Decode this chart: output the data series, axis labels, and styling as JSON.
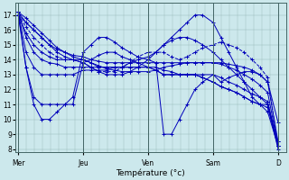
{
  "background_color": "#cce8ec",
  "plot_bg_color": "#cce8ec",
  "grid_color": "#99bbbb",
  "line_color": "#0000bb",
  "xlabel": "Température (°c)",
  "ylim": [
    7.8,
    17.8
  ],
  "yticks": [
    8,
    9,
    10,
    11,
    12,
    13,
    14,
    15,
    16,
    17
  ],
  "day_positions": [
    0.0,
    0.25,
    0.5,
    0.75,
    1.0
  ],
  "day_labels": [
    "Mer",
    "Jeu",
    "Ven",
    "Sam",
    "D"
  ],
  "series": [
    {
      "x": [
        0.0,
        0.03,
        0.06,
        0.09,
        0.12,
        0.15,
        0.18,
        0.21,
        0.25,
        0.28,
        0.31,
        0.34,
        0.37,
        0.4,
        0.43,
        0.46,
        0.5,
        0.53,
        0.56,
        0.59,
        0.62,
        0.65,
        0.68,
        0.71,
        0.75,
        0.78,
        0.81,
        0.84,
        0.87,
        0.9,
        0.93,
        0.96,
        1.0
      ],
      "y": [
        17.2,
        16.8,
        16.3,
        15.8,
        15.3,
        14.8,
        14.5,
        14.2,
        14.0,
        13.8,
        13.6,
        13.4,
        13.3,
        13.2,
        13.2,
        13.2,
        13.2,
        13.3,
        13.5,
        13.6,
        13.7,
        13.8,
        13.8,
        13.8,
        13.8,
        13.8,
        13.7,
        13.6,
        13.5,
        13.3,
        13.0,
        12.5,
        9.8
      ],
      "linestyle": "solid"
    },
    {
      "x": [
        0.0,
        0.03,
        0.06,
        0.09,
        0.12,
        0.15,
        0.18,
        0.21,
        0.25,
        0.28,
        0.31,
        0.34,
        0.37,
        0.4,
        0.43,
        0.46,
        0.5,
        0.53,
        0.56,
        0.59,
        0.62,
        0.65,
        0.68,
        0.71,
        0.75,
        0.78,
        0.81,
        0.84,
        0.87,
        0.9,
        0.93,
        0.96,
        1.0
      ],
      "y": [
        17.2,
        16.5,
        16.0,
        15.5,
        15.0,
        14.7,
        14.5,
        14.3,
        14.2,
        14.0,
        13.9,
        13.8,
        13.8,
        13.8,
        13.8,
        13.8,
        13.8,
        13.8,
        13.8,
        13.8,
        13.8,
        13.8,
        13.8,
        13.8,
        13.8,
        13.7,
        13.5,
        13.3,
        13.0,
        12.7,
        12.3,
        11.8,
        8.2
      ],
      "linestyle": "solid"
    },
    {
      "x": [
        0.0,
        0.03,
        0.06,
        0.09,
        0.12,
        0.15,
        0.18,
        0.21,
        0.25,
        0.28,
        0.31,
        0.34,
        0.37,
        0.4,
        0.43,
        0.46,
        0.5,
        0.53,
        0.56,
        0.59,
        0.62,
        0.65,
        0.68,
        0.71,
        0.75,
        0.78,
        0.81,
        0.84,
        0.87,
        0.9,
        0.93,
        0.96,
        1.0
      ],
      "y": [
        17.2,
        15.5,
        14.5,
        14.0,
        13.8,
        13.7,
        13.5,
        13.5,
        13.5,
        13.5,
        13.5,
        13.5,
        13.5,
        13.5,
        13.5,
        13.5,
        13.5,
        13.5,
        13.3,
        13.2,
        13.0,
        13.0,
        13.0,
        13.0,
        13.0,
        12.8,
        12.5,
        12.3,
        12.0,
        11.7,
        11.5,
        11.2,
        8.2
      ],
      "linestyle": "solid"
    },
    {
      "x": [
        0.0,
        0.03,
        0.06,
        0.09,
        0.12,
        0.15,
        0.18,
        0.21,
        0.25,
        0.28,
        0.31,
        0.34,
        0.37,
        0.4,
        0.43,
        0.46,
        0.5,
        0.53,
        0.56,
        0.59,
        0.62,
        0.65,
        0.68,
        0.71,
        0.75,
        0.78,
        0.81,
        0.84,
        0.87,
        0.9,
        0.93,
        0.96,
        1.0
      ],
      "y": [
        17.2,
        14.5,
        13.5,
        13.0,
        13.0,
        13.0,
        13.0,
        13.0,
        13.3,
        13.3,
        13.3,
        13.3,
        13.5,
        13.5,
        13.5,
        13.5,
        13.5,
        13.3,
        13.0,
        13.0,
        13.0,
        13.0,
        13.0,
        12.8,
        12.5,
        12.2,
        12.0,
        11.8,
        11.5,
        11.2,
        11.0,
        10.8,
        8.2
      ],
      "linestyle": "solid"
    },
    {
      "x": [
        0.0,
        0.03,
        0.06,
        0.09,
        0.12,
        0.15,
        0.18,
        0.21,
        0.25,
        0.28,
        0.31,
        0.34,
        0.37,
        0.4,
        0.43,
        0.46,
        0.5,
        0.53,
        0.56,
        0.59,
        0.62,
        0.65,
        0.68,
        0.71,
        0.75,
        0.78,
        0.81,
        0.84,
        0.87,
        0.9,
        0.93,
        0.96,
        1.0
      ],
      "y": [
        17.2,
        13.5,
        11.5,
        11.0,
        11.0,
        11.0,
        11.0,
        11.0,
        13.8,
        14.0,
        14.3,
        14.5,
        14.5,
        14.2,
        14.0,
        13.8,
        13.5,
        13.3,
        13.0,
        13.0,
        13.0,
        13.0,
        13.0,
        12.8,
        12.5,
        12.2,
        12.0,
        11.8,
        11.5,
        11.2,
        11.0,
        11.0,
        8.5
      ],
      "linestyle": "solid"
    },
    {
      "x": [
        0.0,
        0.03,
        0.06,
        0.09,
        0.12,
        0.15,
        0.18,
        0.21,
        0.25,
        0.28,
        0.31,
        0.34,
        0.37,
        0.4,
        0.43,
        0.46,
        0.5,
        0.53,
        0.56,
        0.59,
        0.62,
        0.65,
        0.68,
        0.71,
        0.75,
        0.78,
        0.81,
        0.84,
        0.87,
        0.9,
        0.93,
        0.96,
        1.0
      ],
      "y": [
        17.0,
        13.5,
        11.0,
        10.0,
        10.0,
        10.5,
        11.0,
        11.5,
        14.5,
        15.0,
        15.5,
        15.5,
        15.2,
        14.8,
        14.5,
        14.2,
        14.0,
        13.8,
        9.0,
        9.0,
        10.0,
        11.0,
        12.0,
        12.5,
        13.0,
        12.5,
        12.8,
        13.0,
        13.2,
        13.2,
        13.0,
        12.5,
        8.5
      ],
      "linestyle": "solid"
    },
    {
      "x": [
        0.0,
        0.03,
        0.06,
        0.09,
        0.12,
        0.15,
        0.18,
        0.21,
        0.25,
        0.28,
        0.31,
        0.34,
        0.37,
        0.4,
        0.43,
        0.46,
        0.5,
        0.53,
        0.56,
        0.59,
        0.62,
        0.65,
        0.68,
        0.71,
        0.75,
        0.78,
        0.81,
        0.84,
        0.87,
        0.9,
        0.93,
        0.96,
        1.0
      ],
      "y": [
        17.0,
        16.5,
        16.0,
        15.5,
        15.0,
        14.5,
        14.2,
        14.0,
        14.0,
        13.8,
        13.5,
        13.5,
        13.5,
        13.5,
        13.8,
        14.0,
        14.2,
        14.5,
        15.0,
        15.5,
        16.0,
        16.5,
        17.0,
        17.0,
        16.5,
        15.5,
        14.5,
        13.5,
        12.5,
        11.5,
        11.0,
        10.5,
        8.2
      ],
      "linestyle": "solid"
    },
    {
      "x": [
        0.0,
        0.03,
        0.06,
        0.09,
        0.12,
        0.15,
        0.18,
        0.21,
        0.25,
        0.28,
        0.31,
        0.34,
        0.37,
        0.4,
        0.43,
        0.46,
        0.5,
        0.53,
        0.56,
        0.59,
        0.62,
        0.65,
        0.68,
        0.71,
        0.75,
        0.78,
        0.81,
        0.84,
        0.87,
        0.9,
        0.93,
        0.96,
        1.0
      ],
      "y": [
        17.0,
        16.2,
        15.5,
        15.0,
        14.5,
        14.2,
        14.0,
        14.0,
        13.8,
        13.5,
        13.2,
        13.2,
        13.2,
        13.5,
        13.8,
        14.2,
        14.5,
        14.5,
        14.5,
        14.2,
        14.0,
        14.2,
        14.5,
        14.8,
        15.0,
        15.2,
        15.0,
        14.8,
        14.5,
        14.0,
        13.5,
        12.8,
        8.2
      ],
      "linestyle": "dashed"
    },
    {
      "x": [
        0.0,
        0.03,
        0.06,
        0.09,
        0.12,
        0.15,
        0.18,
        0.21,
        0.25,
        0.28,
        0.31,
        0.34,
        0.37,
        0.4,
        0.43,
        0.46,
        0.5,
        0.53,
        0.56,
        0.59,
        0.62,
        0.65,
        0.68,
        0.71,
        0.75,
        0.78,
        0.81,
        0.84,
        0.87,
        0.9,
        0.93,
        0.96,
        1.0
      ],
      "y": [
        17.0,
        15.8,
        15.0,
        14.5,
        14.2,
        14.0,
        14.0,
        14.0,
        13.8,
        13.5,
        13.2,
        13.0,
        13.0,
        13.0,
        13.2,
        13.5,
        14.0,
        14.5,
        15.0,
        15.3,
        15.5,
        15.5,
        15.3,
        15.0,
        14.5,
        14.0,
        13.5,
        13.0,
        12.5,
        12.0,
        11.5,
        11.0,
        8.0
      ],
      "linestyle": "solid"
    }
  ],
  "n_xminor": 32,
  "n_yminor": 10
}
